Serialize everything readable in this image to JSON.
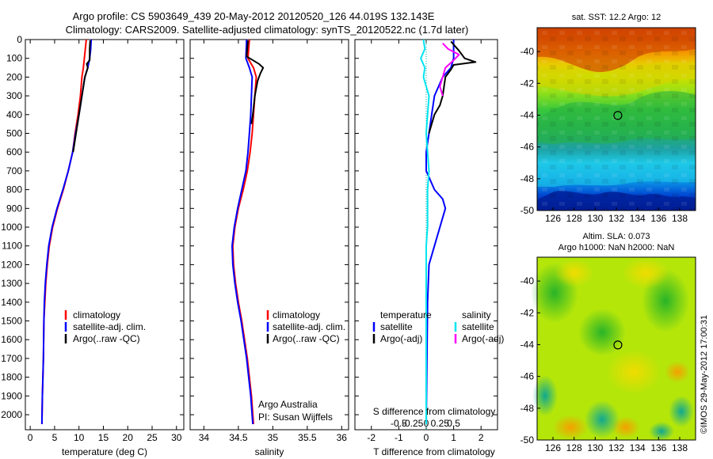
{
  "title_line1": "Argo profile: CS 5903649_439 20-May-2012 20120520_126 44.019S 132.143E",
  "title_line2": "Climatology: CARS2009. Satellite-adjusted climatology: synTS_20120522.nc (1.7d later)",
  "credit": "Argo Australia",
  "pi": "PI: Susan Wijffels",
  "imos_stamp": "©IMOS 29-May-2012 17:00:31",
  "colors": {
    "climatology": "#ff0000",
    "satellite": "#0000ff",
    "argo": "#000000",
    "sat_salinity": "#00e5ee",
    "argo_salinity_adj": "#ff00ff"
  },
  "chart_data": [
    {
      "type": "line",
      "name": "temperature-profile",
      "xlabel": "temperature (deg C)",
      "ylabel": "",
      "xlim": [
        -1,
        31.5
      ],
      "ylim": [
        2080,
        0
      ],
      "xticks": [
        0,
        5,
        10,
        15,
        20,
        25,
        30
      ],
      "yticks": [
        0,
        100,
        200,
        300,
        400,
        500,
        600,
        700,
        800,
        900,
        1000,
        1100,
        1200,
        1300,
        1400,
        1500,
        1600,
        1700,
        1800,
        1900,
        2000
      ],
      "legend": [
        "climatology",
        "satellite-adj. clim.",
        "Argo(..raw -QC)"
      ],
      "legend_position": "lower-right",
      "series": [
        {
          "name": "climatology",
          "color": "#ff0000",
          "points": [
            [
              11.5,
              0
            ],
            [
              11.3,
              50
            ],
            [
              11.1,
              100
            ],
            [
              10.9,
              150
            ],
            [
              10.6,
              200
            ],
            [
              10.3,
              300
            ],
            [
              9.8,
              400
            ],
            [
              9.2,
              500
            ],
            [
              8.7,
              600
            ],
            [
              7.8,
              700
            ],
            [
              6.8,
              800
            ],
            [
              5.6,
              900
            ],
            [
              4.6,
              1000
            ],
            [
              3.9,
              1100
            ],
            [
              3.5,
              1200
            ],
            [
              3.2,
              1300
            ],
            [
              3.0,
              1400
            ],
            [
              2.8,
              1500
            ],
            [
              2.7,
              1700
            ],
            [
              2.5,
              1900
            ],
            [
              2.4,
              2050
            ]
          ]
        },
        {
          "name": "satellite-adj. clim.",
          "color": "#0000ff",
          "points": [
            [
              12.5,
              0
            ],
            [
              12.4,
              50
            ],
            [
              12.2,
              100
            ],
            [
              11.8,
              150
            ],
            [
              11.2,
              200
            ],
            [
              10.6,
              300
            ],
            [
              10.0,
              400
            ],
            [
              9.3,
              500
            ],
            [
              8.7,
              600
            ],
            [
              7.8,
              700
            ],
            [
              6.7,
              800
            ],
            [
              5.5,
              900
            ],
            [
              4.5,
              1000
            ],
            [
              3.8,
              1100
            ],
            [
              3.4,
              1200
            ],
            [
              3.1,
              1300
            ],
            [
              2.9,
              1400
            ],
            [
              2.8,
              1500
            ],
            [
              2.7,
              1700
            ],
            [
              2.5,
              1900
            ],
            [
              2.4,
              2050
            ]
          ]
        },
        {
          "name": "Argo(..raw -QC)",
          "color": "#000000",
          "points": [
            [
              12.3,
              5
            ],
            [
              12.2,
              50
            ],
            [
              12.2,
              110
            ],
            [
              11.6,
              130
            ],
            [
              11.8,
              150
            ],
            [
              11.2,
              200
            ],
            [
              10.6,
              300
            ],
            [
              10.0,
              400
            ],
            [
              9.4,
              500
            ],
            [
              8.8,
              600
            ]
          ]
        }
      ]
    },
    {
      "type": "line",
      "name": "salinity-profile",
      "xlabel": "salinity",
      "ylabel": "",
      "xlim": [
        33.8,
        36.1
      ],
      "ylim": [
        2080,
        0
      ],
      "xticks": [
        34,
        34.5,
        35,
        35.5,
        36
      ],
      "legend": [
        "climatology",
        "satellite-adj. clim.",
        "Argo(..raw -QC)"
      ],
      "legend_position": "lower-right",
      "series": [
        {
          "name": "climatology",
          "color": "#ff0000",
          "points": [
            [
              34.66,
              0
            ],
            [
              34.64,
              100
            ],
            [
              34.72,
              150
            ],
            [
              34.76,
              200
            ],
            [
              34.74,
              300
            ],
            [
              34.72,
              400
            ],
            [
              34.7,
              500
            ],
            [
              34.67,
              600
            ],
            [
              34.63,
              700
            ],
            [
              34.57,
              800
            ],
            [
              34.5,
              900
            ],
            [
              34.45,
              1000
            ],
            [
              34.42,
              1100
            ],
            [
              34.43,
              1200
            ],
            [
              34.46,
              1300
            ],
            [
              34.5,
              1400
            ],
            [
              34.55,
              1500
            ],
            [
              34.59,
              1600
            ],
            [
              34.63,
              1700
            ],
            [
              34.66,
              1800
            ],
            [
              34.69,
              1900
            ],
            [
              34.72,
              2050
            ]
          ]
        },
        {
          "name": "satellite-adj. clim.",
          "color": "#0000ff",
          "points": [
            [
              34.62,
              0
            ],
            [
              34.61,
              100
            ],
            [
              34.66,
              150
            ],
            [
              34.7,
              200
            ],
            [
              34.69,
              300
            ],
            [
              34.68,
              400
            ],
            [
              34.66,
              500
            ],
            [
              34.64,
              600
            ],
            [
              34.61,
              700
            ],
            [
              34.55,
              800
            ],
            [
              34.49,
              900
            ],
            [
              34.44,
              1000
            ],
            [
              34.41,
              1100
            ],
            [
              34.42,
              1200
            ],
            [
              34.45,
              1300
            ],
            [
              34.49,
              1400
            ],
            [
              34.54,
              1500
            ],
            [
              34.58,
              1600
            ],
            [
              34.62,
              1700
            ],
            [
              34.65,
              1800
            ],
            [
              34.68,
              1900
            ],
            [
              34.71,
              2050
            ]
          ]
        },
        {
          "name": "Argo(..raw -QC)",
          "color": "#000000",
          "points": [
            [
              34.64,
              5
            ],
            [
              34.62,
              90
            ],
            [
              34.8,
              130
            ],
            [
              34.86,
              150
            ],
            [
              34.82,
              180
            ],
            [
              34.78,
              220
            ],
            [
              34.74,
              300
            ],
            [
              34.71,
              400
            ],
            [
              34.69,
              450
            ]
          ]
        }
      ]
    },
    {
      "type": "line",
      "name": "difference-from-climatology",
      "xlabel": "T difference from climatology",
      "xlabel2": "S difference from climatology",
      "xlim": [
        -2.6,
        2.6
      ],
      "ylim": [
        2080,
        0
      ],
      "xticks": [
        -2,
        -1,
        0,
        1,
        2
      ],
      "xticklabels": [
        "-2",
        "-1",
        "0",
        "1",
        "2"
      ],
      "xticks2": [
        -0.5,
        -0.25,
        0,
        0.25,
        0.5
      ],
      "xticklabels2": [
        "-0.5",
        "-0.25",
        "0",
        "0.25",
        "0.5"
      ],
      "legend_headers": [
        "temperature",
        "salinity"
      ],
      "legend": [
        "satellite",
        "Argo(-adj)",
        "satellite",
        "Argo(-adj)"
      ],
      "legend_position": "lower-center",
      "series": [
        {
          "name": "temperature satellite",
          "color": "#0000ff",
          "points": [
            [
              1.0,
              0
            ],
            [
              1.0,
              50
            ],
            [
              1.0,
              100
            ],
            [
              0.9,
              150
            ],
            [
              0.6,
              200
            ],
            [
              0.3,
              300
            ],
            [
              0.2,
              400
            ],
            [
              0.1,
              500
            ],
            [
              0.0,
              600
            ],
            [
              0.0,
              700
            ],
            [
              0.3,
              800
            ],
            [
              0.6,
              850
            ],
            [
              0.7,
              900
            ],
            [
              0.5,
              1000
            ],
            [
              0.3,
              1100
            ],
            [
              0.1,
              1200
            ],
            [
              0.05,
              1400
            ],
            [
              0.0,
              2050
            ]
          ]
        },
        {
          "name": "temperature Argo(-adj)",
          "color": "#000000",
          "points": [
            [
              0.9,
              10
            ],
            [
              1.2,
              60
            ],
            [
              1.4,
              100
            ],
            [
              1.8,
              120
            ],
            [
              1.0,
              135
            ],
            [
              0.9,
              160
            ],
            [
              0.7,
              200
            ],
            [
              0.6,
              300
            ],
            [
              0.5,
              350
            ],
            [
              0.3,
              400
            ],
            [
              0.2,
              450
            ],
            [
              0.1,
              500
            ]
          ]
        },
        {
          "name": "salinity satellite",
          "color": "#00e5ee",
          "points": [
            [
              -0.1,
              0
            ],
            [
              -0.05,
              50
            ],
            [
              -0.2,
              100
            ],
            [
              -0.05,
              150
            ],
            [
              -0.1,
              200
            ],
            [
              0.1,
              300
            ],
            [
              0.05,
              400
            ],
            [
              0.0,
              500
            ],
            [
              0.05,
              600
            ],
            [
              0.1,
              700
            ],
            [
              0.05,
              800
            ],
            [
              0.05,
              900
            ],
            [
              0.05,
              1000
            ],
            [
              0.0,
              1100
            ],
            [
              0.0,
              1200
            ],
            [
              0.0,
              1400
            ],
            [
              0.0,
              2050
            ]
          ]
        },
        {
          "name": "salinity Argo(-adj)",
          "color": "#ff00ff",
          "points": [
            [
              0.6,
              20
            ],
            [
              0.8,
              50
            ],
            [
              1.2,
              80
            ],
            [
              1.0,
              110
            ],
            [
              0.7,
              150
            ],
            [
              0.6,
              200
            ],
            [
              0.5,
              250
            ],
            [
              0.6,
              300
            ]
          ]
        }
      ]
    },
    {
      "type": "heatmap",
      "name": "sst-map",
      "title": "sat. SST: 12.2 Argo: 12",
      "xlim": [
        124.5,
        139.5
      ],
      "ylim": [
        -50,
        -38.5
      ],
      "xticks": [
        126,
        128,
        130,
        132,
        134,
        136,
        138
      ],
      "yticks": [
        -40,
        -42,
        -44,
        -46,
        -48,
        -50
      ],
      "marker": [
        132.143,
        -44.019
      ]
    },
    {
      "type": "heatmap",
      "name": "sla-map",
      "title": "Altim. SLA: 0.073",
      "subtitle": "Argo h1000: NaN h2000: NaN",
      "xlim": [
        124.5,
        139.5
      ],
      "ylim": [
        -50,
        -38.5
      ],
      "xticks": [
        126,
        128,
        130,
        132,
        134,
        136,
        138
      ],
      "yticks": [
        -40,
        -42,
        -44,
        -46,
        -48,
        -50
      ],
      "marker": [
        132.143,
        -44.019
      ]
    }
  ]
}
